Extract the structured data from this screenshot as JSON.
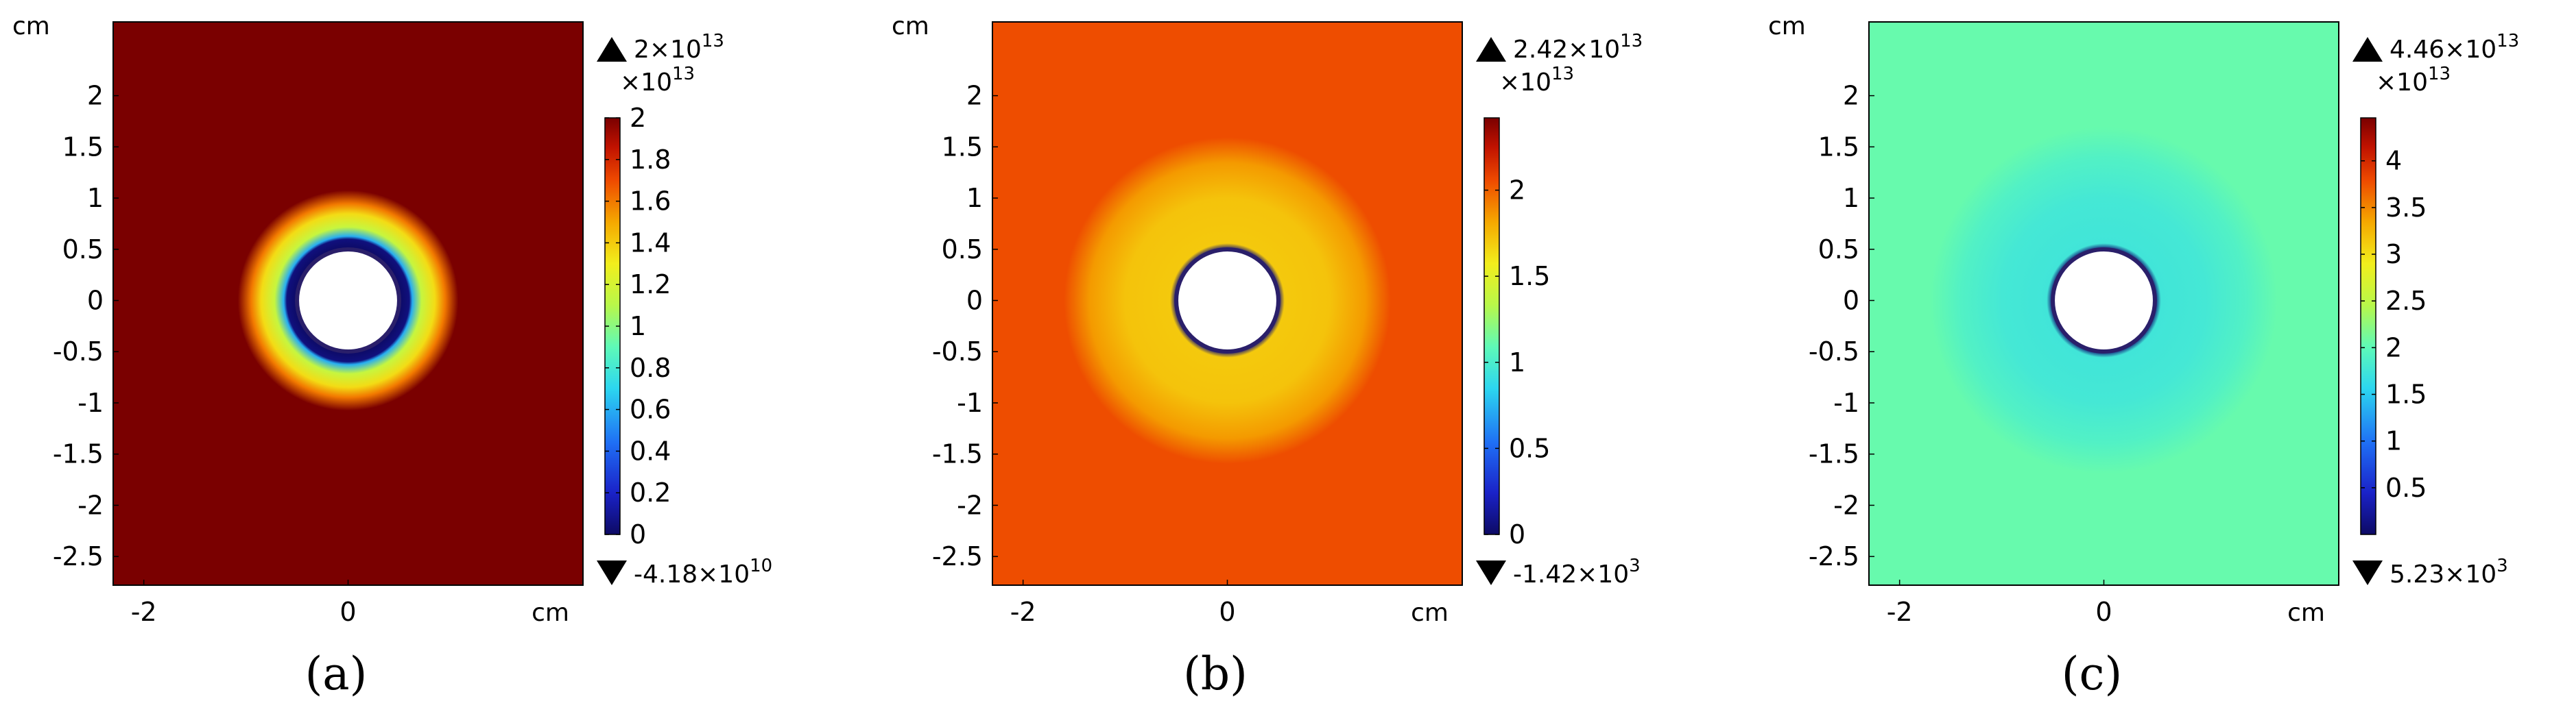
{
  "chart_data": [
    {
      "type": "heatmap",
      "caption": "(a)",
      "x_unit": "cm",
      "y_unit": "cm",
      "x_ticks": [
        "-2",
        "0"
      ],
      "x_tick_values": [
        -2,
        0
      ],
      "y_ticks": [
        "2",
        "1.5",
        "1",
        "0.5",
        "0",
        "-0.5",
        "-1",
        "-1.5",
        "-2",
        "-2.5"
      ],
      "y_tick_values": [
        2,
        1.5,
        1,
        0.5,
        0,
        -0.5,
        -1,
        -1.5,
        -2,
        -2.5
      ],
      "xlim": [
        -2.3,
        2.3
      ],
      "ylim": [
        -2.78,
        2.72
      ],
      "colorbar": {
        "multiplier_base": "×10",
        "multiplier_exp": "13",
        "ticks": [
          "2",
          "1.8",
          "1.6",
          "1.4",
          "1.2",
          "1",
          "0.8",
          "0.6",
          "0.4",
          "0.2",
          "0"
        ],
        "tick_values": [
          2,
          1.8,
          1.6,
          1.4,
          1.2,
          1,
          0.8,
          0.6,
          0.4,
          0.2,
          0
        ],
        "range": [
          0,
          2
        ],
        "max_label": "2×10",
        "max_exp": "13",
        "min_label": "-4.18×10",
        "min_exp": "10"
      },
      "field": {
        "hole_radius": 0.5,
        "background_value": 2.0,
        "rings": [
          {
            "r": 0.5,
            "value": 0.0
          },
          {
            "r": 0.6,
            "value": 0.05
          },
          {
            "r": 0.63,
            "value": 0.6
          },
          {
            "r": 0.72,
            "value": 1.15
          },
          {
            "r": 0.85,
            "value": 1.35
          },
          {
            "r": 0.95,
            "value": 1.6
          },
          {
            "r": 1.08,
            "value": 2.0
          }
        ]
      }
    },
    {
      "type": "heatmap",
      "caption": "(b)",
      "x_unit": "cm",
      "y_unit": "cm",
      "x_ticks": [
        "-2",
        "0"
      ],
      "x_tick_values": [
        -2,
        0
      ],
      "y_ticks": [
        "2",
        "1.5",
        "1",
        "0.5",
        "0",
        "-0.5",
        "-1",
        "-1.5",
        "-2",
        "-2.5"
      ],
      "y_tick_values": [
        2,
        1.5,
        1,
        0.5,
        0,
        -0.5,
        -1,
        -1.5,
        -2,
        -2.5
      ],
      "xlim": [
        -2.3,
        2.3
      ],
      "ylim": [
        -2.78,
        2.72
      ],
      "colorbar": {
        "multiplier_base": "×10",
        "multiplier_exp": "13",
        "ticks": [
          "2",
          "1.5",
          "1",
          "0.5",
          "0"
        ],
        "tick_values": [
          2,
          1.5,
          1,
          0.5,
          0
        ],
        "range": [
          0,
          2.42
        ],
        "max_label": "2.42×10",
        "max_exp": "13",
        "min_label": "-1.42×10",
        "min_exp": "3"
      },
      "field": {
        "hole_radius": 0.5,
        "background_value": 2.05,
        "rings": [
          {
            "r": 0.5,
            "value": 0.05
          },
          {
            "r": 0.56,
            "value": 1.7
          },
          {
            "r": 1.0,
            "value": 1.72
          },
          {
            "r": 1.35,
            "value": 1.85
          },
          {
            "r": 1.6,
            "value": 2.05
          }
        ]
      }
    },
    {
      "type": "heatmap",
      "caption": "(c)",
      "x_unit": "cm",
      "y_unit": "cm",
      "x_ticks": [
        "-2",
        "0"
      ],
      "x_tick_values": [
        -2,
        0
      ],
      "y_ticks": [
        "2",
        "1.5",
        "1",
        "0.5",
        "0",
        "-0.5",
        "-1",
        "-1.5",
        "-2",
        "-2.5"
      ],
      "y_tick_values": [
        2,
        1.5,
        1,
        0.5,
        0,
        -0.5,
        -1,
        -1.5,
        -2,
        -2.5
      ],
      "xlim": [
        -2.3,
        2.3
      ],
      "ylim": [
        -2.78,
        2.72
      ],
      "colorbar": {
        "multiplier_base": "×10",
        "multiplier_exp": "13",
        "ticks": [
          "4",
          "3.5",
          "3",
          "2.5",
          "2",
          "1.5",
          "1",
          "0.5"
        ],
        "tick_values": [
          4,
          3.5,
          3,
          2.5,
          2,
          1.5,
          1,
          0.5
        ],
        "range": [
          0,
          4.46
        ],
        "max_label": "4.46×10",
        "max_exp": "13",
        "min_label": "5.23×10",
        "min_exp": "3"
      },
      "field": {
        "hole_radius": 0.5,
        "background_value": 2.05,
        "rings": [
          {
            "r": 0.5,
            "value": 0.05
          },
          {
            "r": 0.56,
            "value": 1.75
          },
          {
            "r": 1.0,
            "value": 1.78
          },
          {
            "r": 1.4,
            "value": 1.9
          },
          {
            "r": 1.7,
            "value": 2.05
          }
        ]
      }
    }
  ]
}
